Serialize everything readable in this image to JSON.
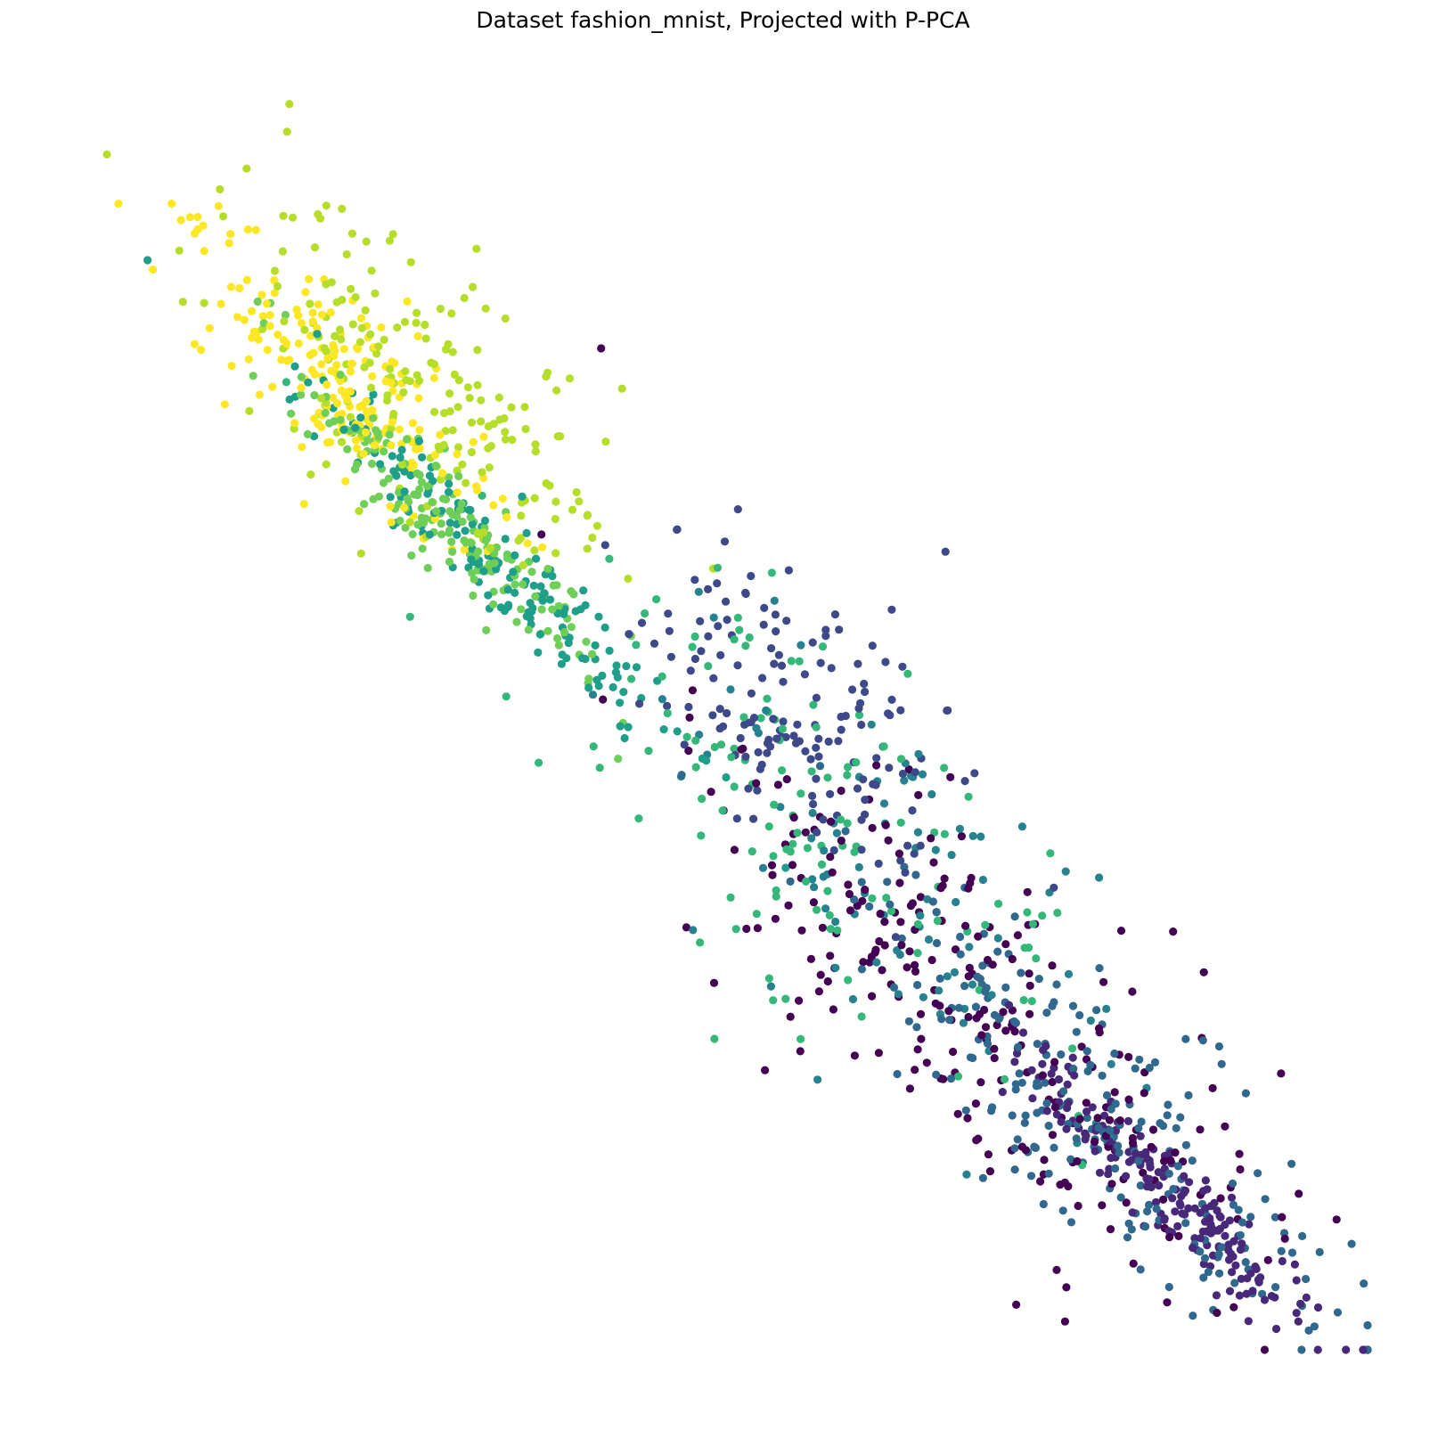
{
  "chart_data": {
    "type": "scatter",
    "title": "Dataset fashion_mnist, Projected with P-PCA",
    "xlabel": "",
    "ylabel": "",
    "axes_visible": false,
    "grid": false,
    "legend": "none",
    "colormap": "viridis",
    "classes": 10,
    "class_colors": [
      "#440154",
      "#482878",
      "#3e4989",
      "#31688e",
      "#26828e",
      "#1f9e89",
      "#35b779",
      "#6ece58",
      "#b5de2b",
      "#fde725"
    ],
    "xlim": [
      0,
      1
    ],
    "ylim": [
      0,
      1
    ],
    "clusters": [
      {
        "class": 0,
        "n": 260,
        "cx": 0.7,
        "cy": 0.265,
        "spread_major": 0.15,
        "spread_minor": 0.052
      },
      {
        "class": 1,
        "n": 190,
        "cx": 0.845,
        "cy": 0.125,
        "spread_major": 0.085,
        "spread_minor": 0.014
      },
      {
        "class": 2,
        "n": 150,
        "cx": 0.555,
        "cy": 0.5,
        "spread_major": 0.08,
        "spread_minor": 0.045
      },
      {
        "class": 3,
        "n": 230,
        "cx": 0.77,
        "cy": 0.195,
        "spread_major": 0.125,
        "spread_minor": 0.04
      },
      {
        "class": 4,
        "n": 90,
        "cx": 0.63,
        "cy": 0.38,
        "spread_major": 0.12,
        "spread_minor": 0.06
      },
      {
        "class": 5,
        "n": 160,
        "cx": 0.32,
        "cy": 0.62,
        "spread_major": 0.11,
        "spread_minor": 0.016
      },
      {
        "class": 6,
        "n": 130,
        "cx": 0.56,
        "cy": 0.43,
        "spread_major": 0.13,
        "spread_minor": 0.06
      },
      {
        "class": 7,
        "n": 180,
        "cx": 0.275,
        "cy": 0.655,
        "spread_major": 0.085,
        "spread_minor": 0.016
      },
      {
        "class": 8,
        "n": 200,
        "cx": 0.25,
        "cy": 0.76,
        "spread_major": 0.1,
        "spread_minor": 0.045
      },
      {
        "class": 9,
        "n": 200,
        "cx": 0.19,
        "cy": 0.775,
        "spread_major": 0.075,
        "spread_minor": 0.028
      }
    ],
    "extra_points": [
      {
        "x": 0.072,
        "y": 0.905,
        "class": 9
      },
      {
        "x": 0.072,
        "y": 0.895,
        "class": 9
      },
      {
        "x": 0.143,
        "y": 0.973,
        "class": 8
      },
      {
        "x": 0.392,
        "y": 0.8,
        "class": 0
      },
      {
        "x": 0.962,
        "y": 0.078,
        "class": 3
      },
      {
        "x": 0.932,
        "y": 0.106,
        "class": 0
      },
      {
        "x": 0.948,
        "y": 0.035,
        "class": 3
      }
    ]
  }
}
